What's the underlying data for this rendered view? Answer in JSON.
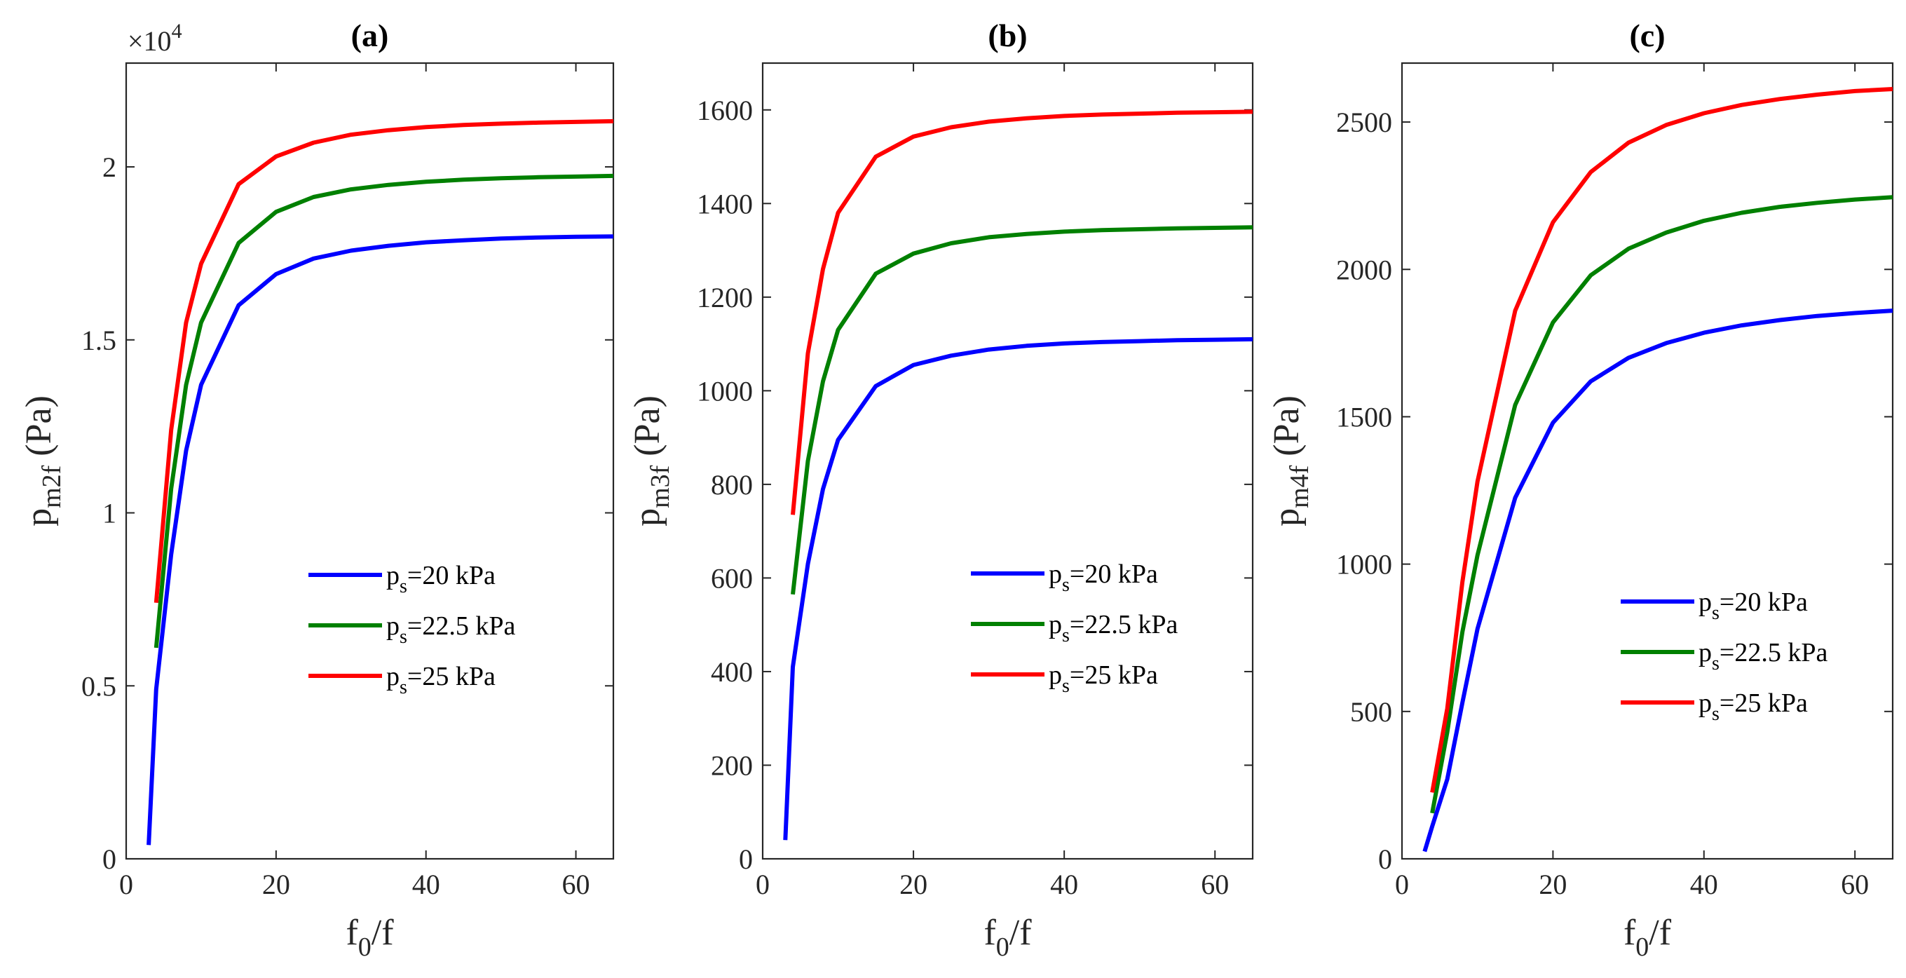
{
  "chart_data": [
    {
      "type": "line",
      "title": "(a)",
      "xlabel": "f_0/f",
      "ylabel": "p_m2f (Pa)",
      "ylabel_main": "p",
      "ylabel_sub": "m2f",
      "ylabel_unit": " (Pa)",
      "xlabel_main": "f",
      "xlabel_sub": "0",
      "xlabel_rest": "/f",
      "xlim": [
        0,
        65
      ],
      "ylim": [
        0,
        23000
      ],
      "xticks": [
        0,
        20,
        40,
        60
      ],
      "xtick_labels": [
        "0",
        "20",
        "40",
        "60"
      ],
      "yticks": [
        0,
        5000,
        10000,
        15000,
        20000
      ],
      "ytick_labels": [
        "0",
        "0.5",
        "1",
        "1.5",
        "2"
      ],
      "multiplier_base": "×10",
      "multiplier_exp": "4",
      "legend_location": "center-right",
      "series": [
        {
          "name": "p_s=20 kPa",
          "label_main": "p",
          "label_sub": "s",
          "label_rest": "=20 kPa",
          "color": "#0000ff",
          "x": [
            3,
            4,
            6,
            8,
            10,
            15,
            20,
            25,
            30,
            35,
            40,
            45,
            50,
            55,
            60,
            65
          ],
          "values": [
            400,
            4900,
            8800,
            11800,
            13700,
            16000,
            16900,
            17350,
            17580,
            17720,
            17820,
            17880,
            17930,
            17960,
            17980,
            17990
          ]
        },
        {
          "name": "p_s=22.5 kPa",
          "label_main": "p",
          "label_sub": "s",
          "label_rest": "=22.5 kPa",
          "color": "#008000",
          "x": [
            4,
            6,
            8,
            10,
            15,
            20,
            25,
            30,
            35,
            40,
            45,
            50,
            55,
            60,
            65
          ],
          "values": [
            6100,
            10700,
            13700,
            15500,
            17800,
            18700,
            19130,
            19350,
            19480,
            19570,
            19630,
            19670,
            19700,
            19720,
            19740
          ]
        },
        {
          "name": "p_s=25 kPa",
          "label_main": "p",
          "label_sub": "s",
          "label_rest": "=25 kPa",
          "color": "#ff0000",
          "x": [
            4,
            6,
            8,
            10,
            15,
            20,
            25,
            30,
            35,
            40,
            45,
            50,
            55,
            60,
            65
          ],
          "values": [
            7400,
            12400,
            15500,
            17200,
            19500,
            20300,
            20700,
            20930,
            21060,
            21150,
            21210,
            21250,
            21280,
            21300,
            21320
          ]
        }
      ]
    },
    {
      "type": "line",
      "title": "(b)",
      "xlabel": "f_0/f",
      "ylabel": "p_m3f (Pa)",
      "ylabel_main": "p",
      "ylabel_sub": "m3f",
      "ylabel_unit": " (Pa)",
      "xlabel_main": "f",
      "xlabel_sub": "0",
      "xlabel_rest": "/f",
      "xlim": [
        0,
        65
      ],
      "ylim": [
        0,
        1700
      ],
      "xticks": [
        0,
        20,
        40,
        60
      ],
      "xtick_labels": [
        "0",
        "20",
        "40",
        "60"
      ],
      "yticks": [
        0,
        200,
        400,
        600,
        800,
        1000,
        1200,
        1400,
        1600
      ],
      "ytick_labels": [
        "0",
        "200",
        "400",
        "600",
        "800",
        "1000",
        "1200",
        "1400",
        "1600"
      ],
      "legend_location": "center-right",
      "series": [
        {
          "name": "p_s=20 kPa",
          "label_main": "p",
          "label_sub": "s",
          "label_rest": "=20 kPa",
          "color": "#0000ff",
          "x": [
            3,
            4,
            6,
            8,
            10,
            15,
            20,
            25,
            30,
            35,
            40,
            45,
            50,
            55,
            60,
            65
          ],
          "values": [
            40,
            410,
            630,
            790,
            895,
            1010,
            1055,
            1075,
            1088,
            1096,
            1101,
            1104,
            1106,
            1108,
            1109,
            1110
          ]
        },
        {
          "name": "p_s=22.5 kPa",
          "label_main": "p",
          "label_sub": "s",
          "label_rest": "=22.5 kPa",
          "color": "#008000",
          "x": [
            4,
            6,
            8,
            10,
            15,
            20,
            25,
            30,
            35,
            40,
            45,
            50,
            55,
            60,
            65
          ],
          "values": [
            565,
            850,
            1020,
            1130,
            1250,
            1293,
            1315,
            1328,
            1335,
            1340,
            1343,
            1345,
            1347,
            1348,
            1349
          ]
        },
        {
          "name": "p_s=25 kPa",
          "label_main": "p",
          "label_sub": "s",
          "label_rest": "=25 kPa",
          "color": "#ff0000",
          "x": [
            4,
            6,
            8,
            10,
            15,
            20,
            25,
            30,
            35,
            40,
            45,
            50,
            55,
            60,
            65
          ],
          "values": [
            735,
            1080,
            1260,
            1380,
            1500,
            1543,
            1563,
            1575,
            1582,
            1587,
            1590,
            1592,
            1594,
            1595,
            1596
          ]
        }
      ]
    },
    {
      "type": "line",
      "title": "(c)",
      "xlabel": "f_0/f",
      "ylabel": "p_m4f (Pa)",
      "ylabel_main": "p",
      "ylabel_sub": "m4f",
      "ylabel_unit": " (Pa)",
      "xlabel_main": "f",
      "xlabel_sub": "0",
      "xlabel_rest": "/f",
      "xlim": [
        0,
        65
      ],
      "ylim": [
        0,
        2700
      ],
      "xticks": [
        0,
        20,
        40,
        60
      ],
      "xtick_labels": [
        "0",
        "20",
        "40",
        "60"
      ],
      "yticks": [
        0,
        500,
        1000,
        1500,
        2000,
        2500
      ],
      "ytick_labels": [
        "0",
        "500",
        "1000",
        "1500",
        "2000",
        "2500"
      ],
      "legend_location": "center-right",
      "series": [
        {
          "name": "p_s=20 kPa",
          "label_main": "p",
          "label_sub": "s",
          "label_rest": "=20 kPa",
          "color": "#0000ff",
          "x": [
            3,
            4,
            6,
            8,
            10,
            15,
            20,
            25,
            30,
            35,
            40,
            45,
            50,
            55,
            60,
            65
          ],
          "values": [
            25,
            110,
            270,
            530,
            780,
            1225,
            1480,
            1620,
            1700,
            1750,
            1785,
            1810,
            1828,
            1842,
            1852,
            1860
          ]
        },
        {
          "name": "p_s=22.5 kPa",
          "label_main": "p",
          "label_sub": "s",
          "label_rest": "=22.5 kPa",
          "color": "#008000",
          "x": [
            4,
            6,
            8,
            10,
            15,
            20,
            25,
            30,
            35,
            40,
            45,
            50,
            55,
            60,
            65
          ],
          "values": [
            155,
            430,
            770,
            1030,
            1540,
            1820,
            1980,
            2070,
            2125,
            2165,
            2192,
            2212,
            2226,
            2237,
            2245
          ]
        },
        {
          "name": "p_s=25 kPa",
          "label_main": "p",
          "label_sub": "s",
          "label_rest": "=25 kPa",
          "color": "#ff0000",
          "x": [
            4,
            6,
            8,
            10,
            15,
            20,
            25,
            30,
            35,
            40,
            45,
            50,
            55,
            60,
            65
          ],
          "values": [
            225,
            510,
            940,
            1280,
            1860,
            2160,
            2330,
            2430,
            2490,
            2530,
            2558,
            2578,
            2593,
            2605,
            2612
          ]
        }
      ]
    }
  ]
}
